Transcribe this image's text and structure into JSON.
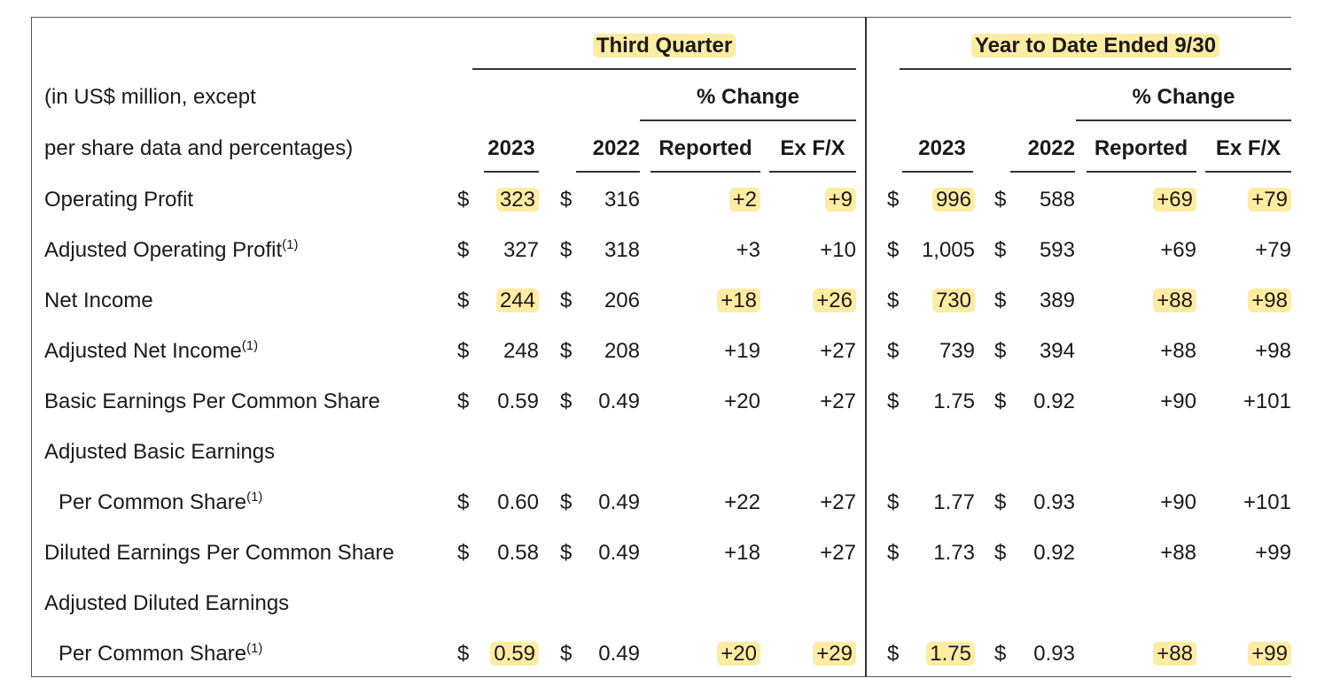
{
  "header": {
    "third_quarter": "Third Quarter",
    "ytd": "Year to Date Ended 9/30",
    "pct_change_q": "% Change",
    "pct_change_y": "% Change",
    "desc_line1": "(in US$ million, except",
    "desc_line2": "per share data and percentages)",
    "q_2023": "2023",
    "q_2022": "2022",
    "q_reported": "Reported",
    "q_exfx": "Ex F/X",
    "y_2023": "2023",
    "y_2022": "2022",
    "y_reported": "Reported",
    "y_exfx": "Ex F/X"
  },
  "currency": "$",
  "rows": [
    {
      "label": "Operating Profit",
      "sup": "",
      "q2023": "323",
      "q2022": "316",
      "qrep": "+2",
      "qfx": "+9",
      "y2023": "996",
      "y2022": "588",
      "yrep": "+69",
      "yfx": "+79"
    },
    {
      "label": "Adjusted Operating Profit",
      "sup": "(1)",
      "q2023": "327",
      "q2022": "318",
      "qrep": "+3",
      "qfx": "+10",
      "y2023": "1,005",
      "y2022": "593",
      "yrep": "+69",
      "yfx": "+79"
    },
    {
      "label": "Net Income",
      "sup": "",
      "q2023": "244",
      "q2022": "206",
      "qrep": "+18",
      "qfx": "+26",
      "y2023": "730",
      "y2022": "389",
      "yrep": "+88",
      "yfx": "+98"
    },
    {
      "label": "Adjusted Net Income",
      "sup": "(1)",
      "q2023": "248",
      "q2022": "208",
      "qrep": "+19",
      "qfx": "+27",
      "y2023": "739",
      "y2022": "394",
      "yrep": "+88",
      "yfx": "+98"
    },
    {
      "label": "Basic Earnings Per Common Share",
      "sup": "",
      "q2023": "0.59",
      "q2022": "0.49",
      "qrep": "+20",
      "qfx": "+27",
      "y2023": "1.75",
      "y2022": "0.92",
      "yrep": "+90",
      "yfx": "+101"
    },
    {
      "label": "Adjusted Basic Earnings",
      "sup": ""
    },
    {
      "label": "Per Common Share",
      "sup": "(1)",
      "indent": true,
      "q2023": "0.60",
      "q2022": "0.49",
      "qrep": "+22",
      "qfx": "+27",
      "y2023": "1.77",
      "y2022": "0.93",
      "yrep": "+90",
      "yfx": "+101"
    },
    {
      "label": "Diluted Earnings Per Common Share",
      "sup": "",
      "q2023": "0.58",
      "q2022": "0.49",
      "qrep": "+18",
      "qfx": "+27",
      "y2023": "1.73",
      "y2022": "0.92",
      "yrep": "+88",
      "yfx": "+99"
    },
    {
      "label": "Adjusted Diluted Earnings",
      "sup": ""
    },
    {
      "label": "Per Common Share",
      "sup": "(1)",
      "indent": true,
      "q2023": "0.59",
      "q2022": "0.49",
      "qrep": "+20",
      "qfx": "+29",
      "y2023": "1.75",
      "y2022": "0.93",
      "yrep": "+88",
      "yfx": "+99"
    }
  ],
  "highlights": {
    "header": [
      "third_quarter",
      "ytd"
    ],
    "cells": [
      [
        0,
        "q2023"
      ],
      [
        0,
        "qrep"
      ],
      [
        0,
        "qfx"
      ],
      [
        0,
        "y2023"
      ],
      [
        0,
        "yrep"
      ],
      [
        0,
        "yfx"
      ],
      [
        2,
        "q2023"
      ],
      [
        2,
        "qrep"
      ],
      [
        2,
        "qfx"
      ],
      [
        2,
        "y2023"
      ],
      [
        2,
        "yrep"
      ],
      [
        2,
        "yfx"
      ],
      [
        9,
        "q2023"
      ],
      [
        9,
        "qrep"
      ],
      [
        9,
        "qfx"
      ],
      [
        9,
        "y2023"
      ],
      [
        9,
        "yrep"
      ],
      [
        9,
        "yfx"
      ]
    ],
    "color": "#ffe066"
  }
}
